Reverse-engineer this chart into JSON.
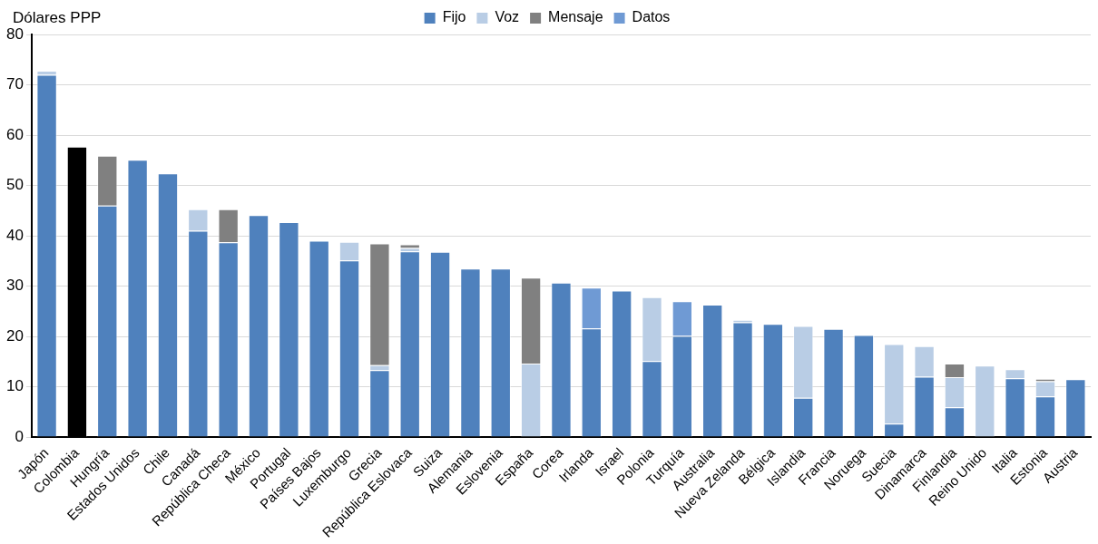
{
  "chart_data": {
    "type": "bar",
    "stacked": true,
    "ylabel": "Dólares PPP",
    "categories": [
      "Japón",
      "Colombia",
      "Hungría",
      "Estados Unidos",
      "Chile",
      "Canadá",
      "República Checa",
      "México",
      "Portugal",
      "Países Bajos",
      "Luxemburgo",
      "Grecia",
      "República Eslovaca",
      "Suiza",
      "Alemania",
      "Eslovenia",
      "España",
      "Corea",
      "Irlanda",
      "Israel",
      "Polonia",
      "Turquía",
      "Australia",
      "Nueva Zelanda",
      "Bélgica",
      "Islandia",
      "Francia",
      "Noruega",
      "Suecia",
      "Dinamarca",
      "Finlandia",
      "Reino Unido",
      "Italia",
      "Estonia",
      "Austria"
    ],
    "series": [
      {
        "name": "Fijo",
        "color": "#4f81bd",
        "colors": [
          "#4f81bd",
          "#000000",
          "#4f81bd",
          "#4f81bd",
          "#4f81bd",
          "#4f81bd",
          "#4f81bd",
          "#4f81bd",
          "#4f81bd",
          "#4f81bd",
          "#4f81bd",
          "#4f81bd",
          "#4f81bd",
          "#4f81bd",
          "#4f81bd",
          "#4f81bd",
          "#4f81bd",
          "#4f81bd",
          "#4f81bd",
          "#4f81bd",
          "#4f81bd",
          "#4f81bd",
          "#4f81bd",
          "#4f81bd",
          "#4f81bd",
          "#4f81bd",
          "#4f81bd",
          "#4f81bd",
          "#4f81bd",
          "#4f81bd",
          "#4f81bd",
          "#4f81bd",
          "#4f81bd",
          "#4f81bd",
          "#4f81bd"
        ],
        "values": [
          72,
          57.7,
          46,
          55.1,
          52.4,
          41,
          38.7,
          44.1,
          42.7,
          39,
          35.1,
          13.3,
          36.9,
          36.8,
          33.5,
          33.5,
          0,
          30.7,
          21.6,
          29.1,
          15.1,
          20.1,
          26.3,
          22.8,
          22.5,
          7.8,
          21.5,
          20.3,
          2.7,
          12,
          5.9,
          0,
          11.7,
          8.1,
          11.5
        ]
      },
      {
        "name": "Voz",
        "color": "#b9cde5",
        "values": [
          0.8,
          0,
          0,
          0,
          0,
          4.3,
          0,
          0,
          0,
          0,
          3.7,
          1,
          0.7,
          0,
          0,
          0,
          14.6,
          0,
          0,
          0,
          12.7,
          0,
          0,
          0.5,
          0,
          14.3,
          0,
          0,
          15.8,
          6.1,
          6,
          14.2,
          1.8,
          3,
          0
        ]
      },
      {
        "name": "Mensaje",
        "color": "#808080",
        "values": [
          0,
          0,
          9.9,
          0,
          0,
          0,
          6.6,
          0,
          0,
          0,
          0,
          24.2,
          0.7,
          0,
          0,
          0,
          17.1,
          0,
          0,
          0,
          0,
          0,
          0,
          0,
          0,
          0,
          0,
          0,
          0,
          0,
          2.7,
          0,
          0,
          0.5,
          0
        ]
      },
      {
        "name": "Datos",
        "color": "#6f9ad4",
        "values": [
          0,
          0,
          0,
          0,
          0,
          0,
          0,
          0,
          0,
          0,
          0,
          0,
          0,
          0,
          0,
          0,
          0,
          0,
          8.1,
          0,
          0,
          6.9,
          0,
          0,
          0,
          0,
          0,
          0,
          0,
          0,
          0,
          0,
          0,
          0,
          0
        ]
      }
    ],
    "ylim": [
      0,
      80
    ],
    "yticks": [
      0,
      10,
      20,
      30,
      40,
      50,
      60,
      70,
      80
    ],
    "grid": "y",
    "legend": "top"
  }
}
